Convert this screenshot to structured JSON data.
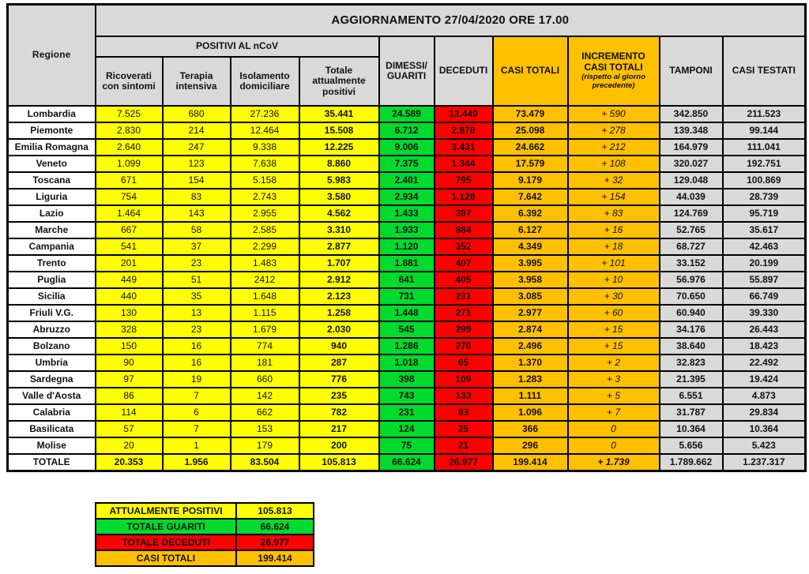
{
  "title": "AGGIORNAMENTO 27/04/2020 ORE 17.00",
  "colors": {
    "yellow": "#FFFF00",
    "green": "#00DB2D",
    "red": "#FF0000",
    "orange": "#FFC000",
    "gray": "#D9D9D9",
    "white": "#FFFFFF"
  },
  "table": {
    "header": {
      "regione": "Regione",
      "positivi_group": "POSITIVI AL nCoV",
      "sub": [
        "Ricoverati\ncon sintomi",
        "Terapia\nintensiva",
        "Isolamento\ndomiciliare",
        "Totale\nattualmente\npositivi"
      ],
      "dimessi": "DIMESSI/\nGUARITI",
      "deceduti": "DECEDUTI",
      "casi_totali": "CASI TOTALI",
      "incremento": "INCREMENTO\nCASI  TOTALI",
      "incremento_note": "(rispetto al giorno precedente)",
      "tamponi": "TAMPONI",
      "casi_testati": "CASI TESTATI"
    },
    "rows": [
      {
        "regione": "Lombardia",
        "values": [
          "7.525",
          "680",
          "27.236",
          "35.441",
          "24.589",
          "13.449",
          "73.479",
          "+ 590",
          "342.850",
          "211.523"
        ]
      },
      {
        "regione": "Piemonte",
        "values": [
          "2.830",
          "214",
          "12.464",
          "15.508",
          "6.712",
          "2.878",
          "25.098",
          "+ 278",
          "139.348",
          "99.144"
        ]
      },
      {
        "regione": "Emilia Romagna",
        "values": [
          "2.640",
          "247",
          "9.338",
          "12.225",
          "9.006",
          "3.431",
          "24.662",
          "+ 212",
          "164.979",
          "111.041"
        ]
      },
      {
        "regione": "Veneto",
        "values": [
          "1.099",
          "123",
          "7.638",
          "8.860",
          "7.375",
          "1.344",
          "17.579",
          "+ 108",
          "320.027",
          "192.751"
        ]
      },
      {
        "regione": "Toscana",
        "values": [
          "671",
          "154",
          "5.158",
          "5.983",
          "2.401",
          "795",
          "9.179",
          "+ 32",
          "129.048",
          "100.869"
        ]
      },
      {
        "regione": "Liguria",
        "values": [
          "754",
          "83",
          "2.743",
          "3.580",
          "2.934",
          "1.128",
          "7.642",
          "+ 154",
          "44.039",
          "28.739"
        ]
      },
      {
        "regione": "Lazio",
        "values": [
          "1.464",
          "143",
          "2.955",
          "4.562",
          "1.433",
          "397",
          "6.392",
          "+ 83",
          "124.769",
          "95.719"
        ]
      },
      {
        "regione": "Marche",
        "values": [
          "667",
          "58",
          "2.585",
          "3.310",
          "1.933",
          "884",
          "6.127",
          "+ 16",
          "52.765",
          "35.617"
        ]
      },
      {
        "regione": "Campania",
        "values": [
          "541",
          "37",
          "2.299",
          "2.877",
          "1.120",
          "352",
          "4.349",
          "+ 18",
          "68.727",
          "42.463"
        ]
      },
      {
        "regione": "Trento",
        "values": [
          "201",
          "23",
          "1.483",
          "1.707",
          "1.881",
          "407",
          "3.995",
          "+ 101",
          "33.152",
          "20.199"
        ]
      },
      {
        "regione": "Puglia",
        "values": [
          "449",
          "51",
          "2412",
          "2.912",
          "641",
          "405",
          "3.958",
          "+ 10",
          "56.976",
          "55.897"
        ]
      },
      {
        "regione": "Sicilia",
        "values": [
          "440",
          "35",
          "1.648",
          "2.123",
          "731",
          "231",
          "3.085",
          "+ 30",
          "70.650",
          "66.749"
        ]
      },
      {
        "regione": "Friuli V.G.",
        "values": [
          "130",
          "13",
          "1.115",
          "1.258",
          "1.448",
          "271",
          "2.977",
          "+ 60",
          "60.940",
          "39.330"
        ]
      },
      {
        "regione": "Abruzzo",
        "values": [
          "328",
          "23",
          "1.679",
          "2.030",
          "545",
          "299",
          "2.874",
          "+ 15",
          "34.176",
          "26.443"
        ]
      },
      {
        "regione": "Bolzano",
        "values": [
          "150",
          "16",
          "774",
          "940",
          "1.286",
          "270",
          "2.496",
          "+ 15",
          "38.640",
          "18.423"
        ]
      },
      {
        "regione": "Umbria",
        "values": [
          "90",
          "16",
          "181",
          "287",
          "1.018",
          "65",
          "1.370",
          "+ 2",
          "32.823",
          "22.492"
        ]
      },
      {
        "regione": "Sardegna",
        "values": [
          "97",
          "19",
          "660",
          "776",
          "398",
          "109",
          "1.283",
          "+ 3",
          "21.395",
          "19.424"
        ]
      },
      {
        "regione": "Valle d'Aosta",
        "values": [
          "86",
          "7",
          "142",
          "235",
          "743",
          "133",
          "1.111",
          "+ 5",
          "6.551",
          "4.873"
        ]
      },
      {
        "regione": "Calabria",
        "values": [
          "114",
          "6",
          "662",
          "782",
          "231",
          "83",
          "1.096",
          "+ 7",
          "31.787",
          "29.834"
        ]
      },
      {
        "regione": "Basilicata",
        "values": [
          "57",
          "7",
          "153",
          "217",
          "124",
          "25",
          "366",
          "0",
          "10.364",
          "10.364"
        ]
      },
      {
        "regione": "Molise",
        "values": [
          "20",
          "1",
          "179",
          "200",
          "75",
          "21",
          "296",
          "0",
          "5.656",
          "5.423"
        ]
      }
    ],
    "totale": {
      "regione": "TOTALE",
      "values": [
        "20.353",
        "1.956",
        "83.504",
        "105.813",
        "66.624",
        "26.977",
        "199.414",
        "+ 1.739",
        "1.789.662",
        "1.237.317"
      ]
    }
  },
  "summary": {
    "rows": [
      {
        "label": "ATTUALMENTE POSITIVI",
        "value": "105.813",
        "color": "#FFFF00"
      },
      {
        "label": "TOTALE GUARITI",
        "value": "66.624",
        "color": "#00DB2D"
      },
      {
        "label": "TOTALE DECEDUTI",
        "value": "26.977",
        "color": "#FF0000"
      },
      {
        "label": "CASI TOTALI",
        "value": "199.414",
        "color": "#FFC000"
      }
    ]
  }
}
